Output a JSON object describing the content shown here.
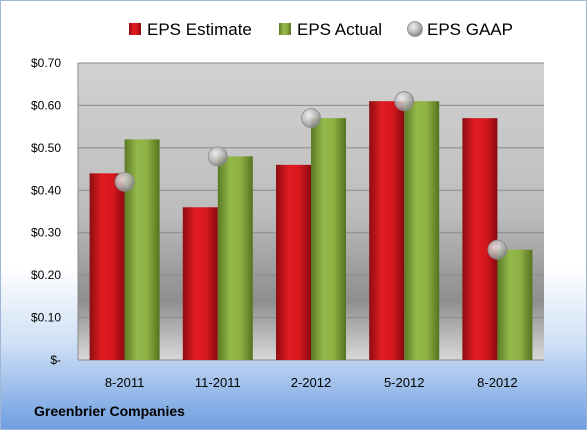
{
  "company": "Greenbrier Companies",
  "chart_data": {
    "type": "bar",
    "categories": [
      "8-2011",
      "11-2011",
      "2-2012",
      "5-2012",
      "8-2012"
    ],
    "series": [
      {
        "name": "EPS Estimate",
        "kind": "bar",
        "color": "#c8141a",
        "values": [
          0.44,
          0.36,
          0.46,
          0.61,
          0.57
        ]
      },
      {
        "name": "EPS Actual",
        "kind": "bar",
        "color": "#7fa23c",
        "values": [
          0.52,
          0.48,
          0.57,
          0.61,
          0.26
        ]
      },
      {
        "name": "EPS GAAP",
        "kind": "marker",
        "color": "#a9a9a9",
        "values": [
          0.42,
          0.48,
          0.57,
          0.61,
          0.26
        ]
      }
    ],
    "ylim": [
      0,
      0.7
    ],
    "yticks": [
      0,
      0.1,
      0.2,
      0.3,
      0.4,
      0.5,
      0.6,
      0.7
    ],
    "ytick_labels": [
      "$-",
      "$0.10",
      "$0.20",
      "$0.30",
      "$0.40",
      "$0.50",
      "$0.60",
      "$0.70"
    ],
    "grid": true,
    "legend_position": "top"
  }
}
